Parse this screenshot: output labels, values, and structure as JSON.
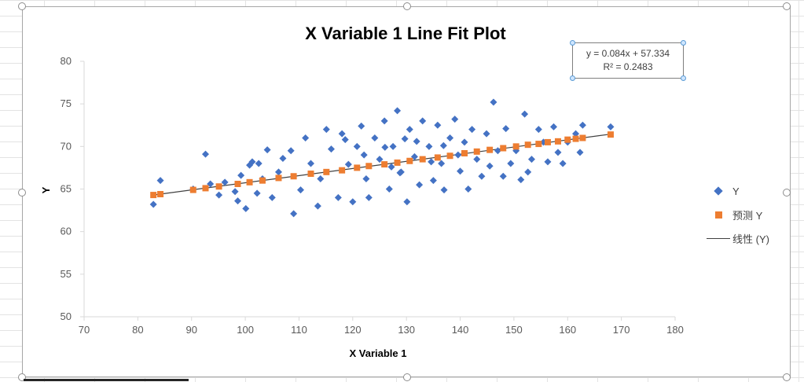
{
  "chart_data": {
    "type": "scatter",
    "title": "X Variable 1 Line Fit  Plot",
    "xlabel": "X Variable 1",
    "ylabel": "Y",
    "xlim": [
      70,
      180
    ],
    "ylim": [
      50,
      80
    ],
    "x_ticks": [
      "70",
      "80",
      "90",
      "100",
      "110",
      "120",
      "130",
      "140",
      "150",
      "160",
      "170",
      "180"
    ],
    "y_ticks": [
      "50",
      "55",
      "60",
      "65",
      "70",
      "75",
      "80"
    ],
    "grid": false,
    "legend_position": "right",
    "legend": [
      "Y",
      "预测 Y",
      "线性 (Y)"
    ],
    "trendline": {
      "slope": 0.084,
      "intercept": 57.334,
      "equation": "y = 0.084x + 57.334",
      "r_squared": "R² = 0.2483"
    },
    "series": [
      {
        "name": "Y",
        "marker": "diamond",
        "color": "#4472c4",
        "points": [
          [
            82.9,
            63.2
          ],
          [
            84.2,
            66.0
          ],
          [
            90.3,
            65.0
          ],
          [
            92.6,
            69.1
          ],
          [
            93.5,
            65.6
          ],
          [
            95.1,
            64.3
          ],
          [
            96.2,
            65.8
          ],
          [
            98.1,
            64.7
          ],
          [
            98.6,
            63.6
          ],
          [
            99.2,
            66.6
          ],
          [
            100.1,
            62.7
          ],
          [
            100.8,
            67.8
          ],
          [
            101.3,
            68.2
          ],
          [
            102.2,
            64.5
          ],
          [
            102.5,
            68.0
          ],
          [
            103.2,
            66.2
          ],
          [
            104.1,
            69.6
          ],
          [
            105.0,
            64.0
          ],
          [
            106.2,
            67.0
          ],
          [
            107.0,
            68.6
          ],
          [
            108.5,
            69.5
          ],
          [
            109.0,
            62.1
          ],
          [
            110.3,
            64.9
          ],
          [
            111.2,
            71.0
          ],
          [
            112.2,
            68.0
          ],
          [
            113.5,
            63.0
          ],
          [
            114.0,
            66.2
          ],
          [
            115.1,
            72.0
          ],
          [
            116.0,
            69.7
          ],
          [
            117.3,
            64.0
          ],
          [
            118.0,
            71.5
          ],
          [
            119.2,
            67.9
          ],
          [
            120.0,
            63.5
          ],
          [
            120.8,
            70.0
          ],
          [
            121.6,
            72.4
          ],
          [
            122.5,
            66.2
          ],
          [
            123.0,
            64.0
          ],
          [
            124.1,
            71.0
          ],
          [
            125.0,
            68.5
          ],
          [
            125.9,
            73.0
          ],
          [
            126.8,
            65.0
          ],
          [
            127.5,
            70.0
          ],
          [
            128.3,
            74.2
          ],
          [
            129.0,
            67.0
          ],
          [
            130.1,
            63.5
          ],
          [
            130.6,
            72.0
          ],
          [
            131.5,
            68.8
          ],
          [
            132.4,
            65.5
          ],
          [
            133.0,
            73.0
          ],
          [
            134.2,
            70.0
          ],
          [
            135.0,
            66.0
          ],
          [
            135.8,
            72.5
          ],
          [
            136.5,
            68.0
          ],
          [
            137.0,
            64.9
          ],
          [
            138.1,
            71.0
          ],
          [
            139.0,
            73.2
          ],
          [
            140.0,
            67.1
          ],
          [
            140.8,
            70.5
          ],
          [
            141.5,
            65.0
          ],
          [
            142.2,
            72.0
          ],
          [
            143.1,
            68.5
          ],
          [
            144.0,
            66.5
          ],
          [
            144.9,
            71.5
          ],
          [
            145.5,
            67.7
          ],
          [
            146.2,
            75.2
          ],
          [
            147.0,
            69.5
          ],
          [
            148.0,
            66.5
          ],
          [
            148.5,
            72.1
          ],
          [
            149.4,
            68.0
          ],
          [
            150.4,
            69.5
          ],
          [
            151.3,
            66.1
          ],
          [
            152.0,
            73.8
          ],
          [
            152.6,
            67.0
          ],
          [
            153.3,
            68.5
          ],
          [
            154.6,
            72.0
          ],
          [
            155.5,
            70.5
          ],
          [
            156.3,
            68.2
          ],
          [
            157.4,
            72.3
          ],
          [
            158.2,
            69.3
          ],
          [
            159.1,
            68.0
          ],
          [
            160.0,
            70.5
          ],
          [
            161.5,
            71.5
          ],
          [
            162.3,
            69.3
          ],
          [
            162.8,
            72.5
          ],
          [
            168.0,
            72.3
          ],
          [
            118.6,
            70.8
          ],
          [
            122.1,
            69.0
          ],
          [
            126.0,
            69.9
          ],
          [
            128.8,
            66.9
          ],
          [
            131.9,
            70.6
          ],
          [
            134.6,
            68.2
          ],
          [
            136.9,
            70.1
          ],
          [
            139.6,
            69.0
          ],
          [
            127.2,
            67.6
          ],
          [
            129.7,
            70.9
          ]
        ]
      },
      {
        "name": "预测 Y",
        "marker": "square",
        "color": "#ed7d31",
        "points": [
          [
            82.9,
            64.3
          ],
          [
            84.2,
            64.4
          ],
          [
            90.3,
            64.9
          ],
          [
            92.6,
            65.1
          ],
          [
            95.1,
            65.3
          ],
          [
            98.6,
            65.6
          ],
          [
            100.8,
            65.8
          ],
          [
            103.2,
            66.0
          ],
          [
            106.2,
            66.3
          ],
          [
            109.0,
            66.5
          ],
          [
            112.2,
            66.8
          ],
          [
            115.1,
            67.0
          ],
          [
            118.0,
            67.2
          ],
          [
            120.8,
            67.5
          ],
          [
            123.0,
            67.7
          ],
          [
            125.9,
            67.9
          ],
          [
            128.3,
            68.1
          ],
          [
            130.6,
            68.3
          ],
          [
            133.0,
            68.5
          ],
          [
            135.8,
            68.7
          ],
          [
            138.1,
            68.9
          ],
          [
            140.8,
            69.2
          ],
          [
            143.1,
            69.4
          ],
          [
            145.5,
            69.6
          ],
          [
            148.0,
            69.8
          ],
          [
            150.4,
            70.0
          ],
          [
            152.6,
            70.2
          ],
          [
            154.6,
            70.3
          ],
          [
            156.3,
            70.5
          ],
          [
            158.2,
            70.6
          ],
          [
            160.0,
            70.8
          ],
          [
            161.5,
            70.9
          ],
          [
            162.8,
            71.0
          ],
          [
            168.0,
            71.4
          ]
        ]
      }
    ]
  }
}
